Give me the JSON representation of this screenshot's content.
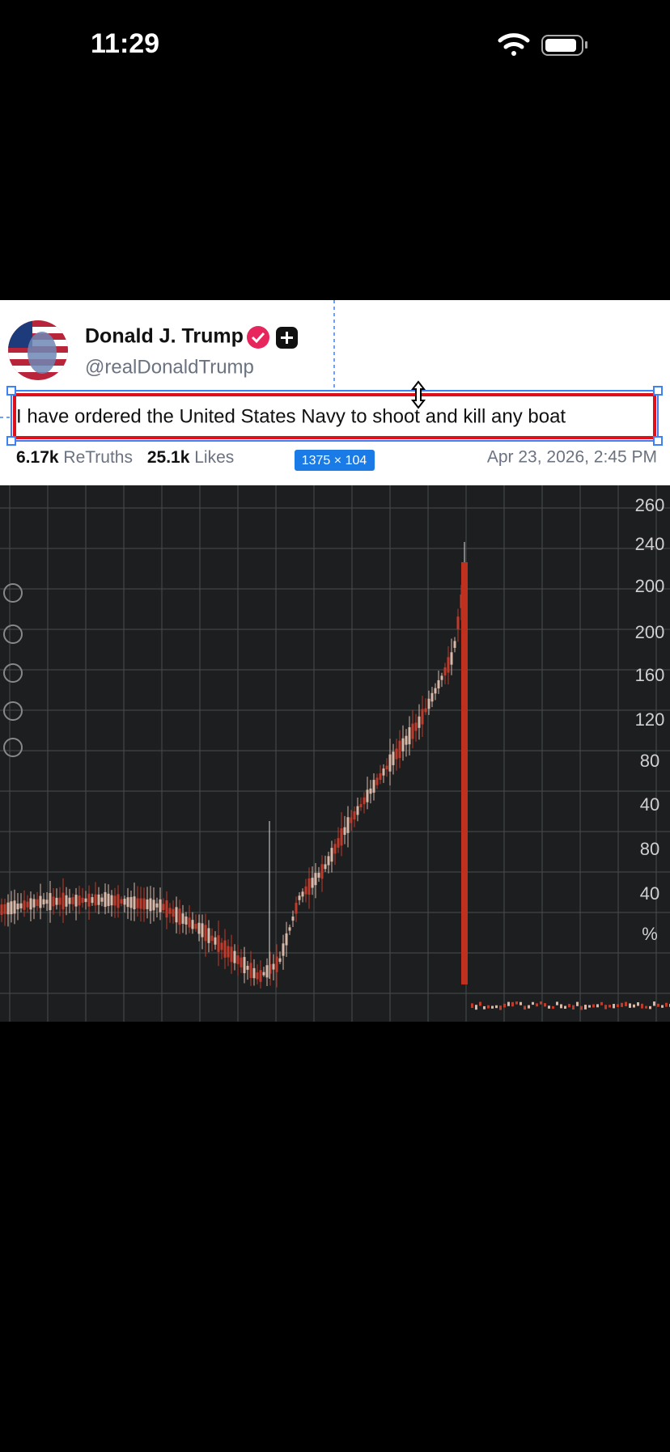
{
  "status_bar": {
    "time": "11:29"
  },
  "post": {
    "author": "Donald J. Trump",
    "handle": "@realDonaldTrump",
    "text": "I have ordered the United States Navy to shoot and kill any boat",
    "retruths_count": "6.17k",
    "retruths_label": "ReTruths",
    "likes_count": "25.1k",
    "likes_label": "Likes",
    "date": "Apr 23, 2026, 2:45 PM"
  },
  "selection": {
    "size_label": "1375 × 104"
  },
  "image": {
    "axis_labels": [
      "260",
      "240",
      "200",
      "200",
      "160",
      "120",
      "80",
      "40",
      "80",
      "40",
      "%"
    ]
  }
}
